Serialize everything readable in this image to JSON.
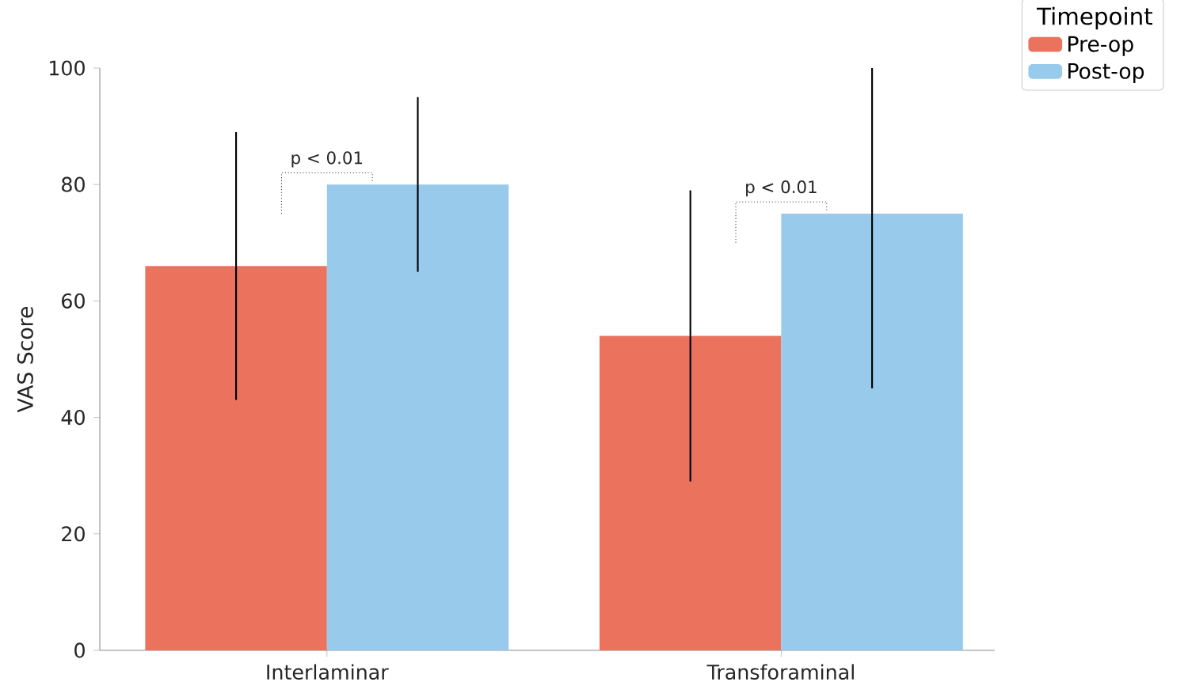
{
  "chart_data": {
    "type": "bar",
    "ylabel": "VAS Score",
    "legend_title": "Timepoint",
    "legend": "top right",
    "categories": [
      "Interlaminar",
      "Transforaminal"
    ],
    "series": [
      {
        "name": "Pre-op",
        "color": "#eb735e",
        "values": [
          66,
          54
        ],
        "errors": [
          [
            43,
            89
          ],
          [
            29,
            79
          ]
        ]
      },
      {
        "name": "Post-op",
        "color": "#98caeb",
        "values": [
          80,
          75
        ],
        "errors": [
          [
            65,
            95
          ],
          [
            45,
            100
          ]
        ]
      }
    ],
    "annotations": [
      "p < 0.01",
      "p < 0.01"
    ],
    "ylim": [
      0,
      100
    ],
    "yticks": [
      0,
      20,
      40,
      60,
      80,
      100
    ]
  }
}
